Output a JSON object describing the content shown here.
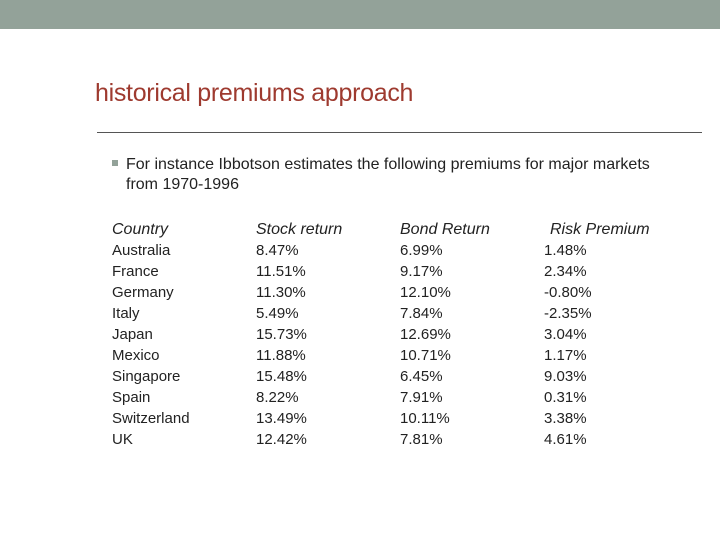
{
  "slide": {
    "title": "historical premiums approach",
    "bullet": "For instance Ibbotson estimates the following premiums for major markets from 1970-1996",
    "colors": {
      "top_bar": "#93a299",
      "title": "#9e3a2f",
      "text": "#222222",
      "bullet_marker": "#93a299"
    }
  },
  "table": {
    "headers": [
      "Country",
      "Stock return",
      "Bond Return",
      "Risk Premium"
    ],
    "rows": [
      [
        "Australia",
        "8.47%",
        "6.99%",
        "1.48%"
      ],
      [
        "France",
        "11.51%",
        "9.17%",
        "2.34%"
      ],
      [
        "Germany",
        "11.30%",
        "12.10%",
        "-0.80%"
      ],
      [
        "Italy",
        "5.49%",
        "7.84%",
        "-2.35%"
      ],
      [
        "Japan",
        "15.73%",
        "12.69%",
        "3.04%"
      ],
      [
        "Mexico",
        "11.88%",
        "10.71%",
        "1.17%"
      ],
      [
        "Singapore",
        "15.48%",
        "6.45%",
        "9.03%"
      ],
      [
        "Spain",
        "8.22%",
        "7.91%",
        "0.31%"
      ],
      [
        "Switzerland",
        "13.49%",
        "10.11%",
        "3.38%"
      ],
      [
        "UK",
        "12.42%",
        "7.81%",
        "4.61%"
      ]
    ]
  }
}
